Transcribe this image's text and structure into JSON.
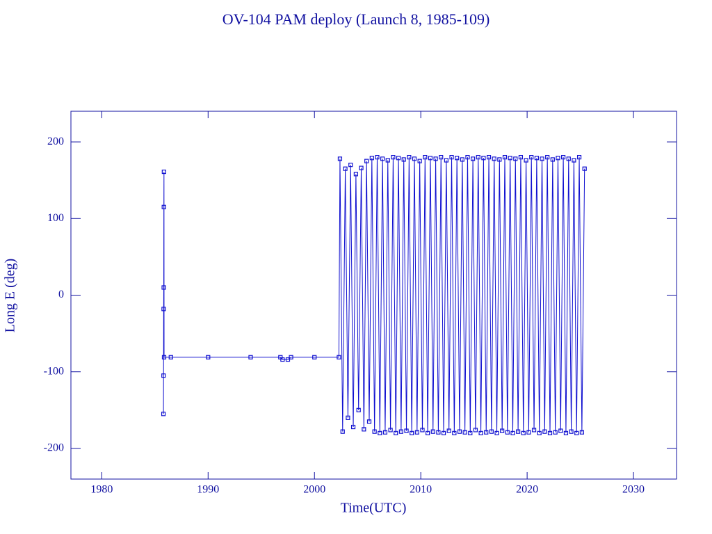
{
  "chart_data": {
    "type": "line",
    "title": "OV-104 PAM deploy (Launch 8, 1985-109)",
    "x_label": "Time(UTC)",
    "y_label": "Long E (deg)",
    "xlim": [
      1977.1,
      2034.05
    ],
    "ylim": [
      -240,
      240
    ],
    "xticks": [
      1980,
      1990,
      2000,
      2010,
      2020,
      2030
    ],
    "yticks": [
      -200,
      -100,
      0,
      100,
      200
    ],
    "series": [
      {
        "color": "#1010d0",
        "x": [
          1985.8,
          1985.81,
          1985.82,
          1985.83,
          1985.84,
          1985.85,
          1985.86,
          1986.5,
          1990,
          1994,
          1996.8,
          1997.0,
          1997.5,
          1997.8,
          2000,
          2002.3,
          2002.4,
          2002.65,
          2002.9,
          2003.15,
          2003.4,
          2003.65,
          2003.9,
          2004.15,
          2004.4,
          2004.65,
          2004.9,
          2005.15,
          2005.4,
          2005.65,
          2005.9,
          2006.15,
          2006.4,
          2006.65,
          2006.9,
          2007.15,
          2007.4,
          2007.65,
          2007.9,
          2008.15,
          2008.4,
          2008.65,
          2008.9,
          2009.15,
          2009.4,
          2009.65,
          2009.9,
          2010.15,
          2010.4,
          2010.65,
          2010.9,
          2011.15,
          2011.4,
          2011.65,
          2011.9,
          2012.15,
          2012.4,
          2012.65,
          2012.9,
          2013.15,
          2013.4,
          2013.65,
          2013.9,
          2014.15,
          2014.4,
          2014.65,
          2014.9,
          2015.15,
          2015.4,
          2015.65,
          2015.9,
          2016.15,
          2016.4,
          2016.65,
          2016.9,
          2017.15,
          2017.4,
          2017.65,
          2017.9,
          2018.15,
          2018.4,
          2018.65,
          2018.9,
          2019.15,
          2019.4,
          2019.65,
          2019.9,
          2020.15,
          2020.4,
          2020.65,
          2020.9,
          2021.15,
          2021.4,
          2021.65,
          2021.9,
          2022.15,
          2022.4,
          2022.65,
          2022.9,
          2023.15,
          2023.4,
          2023.65,
          2023.9,
          2024.15,
          2024.4,
          2024.65,
          2024.9,
          2025.15,
          2025.4
        ],
        "values": [
          -155,
          -105,
          -18,
          10,
          115,
          161,
          -81,
          -81,
          -81,
          -81,
          -81,
          -84,
          -84,
          -81,
          -81,
          -81,
          178,
          -178,
          165,
          -160,
          170,
          -172,
          158,
          -150,
          166,
          -175,
          175,
          -165,
          179,
          -178,
          180,
          -180,
          178,
          -179,
          176,
          -176,
          180,
          -180,
          179,
          -178,
          177,
          -177,
          180,
          -180,
          178,
          -179,
          175,
          -176,
          180,
          -180,
          179,
          -178,
          178,
          -179,
          180,
          -180,
          176,
          -177,
          180,
          -180,
          179,
          -178,
          177,
          -179,
          180,
          -180,
          178,
          -176,
          180,
          -180,
          179,
          -179,
          180,
          -178,
          178,
          -180,
          177,
          -177,
          180,
          -179,
          179,
          -180,
          178,
          -178,
          180,
          -180,
          176,
          -179,
          180,
          -176,
          179,
          -180,
          178,
          -178,
          180,
          -180,
          177,
          -179,
          179,
          -177,
          180,
          -180,
          178,
          -178,
          176,
          -180,
          180,
          -179,
          165
        ]
      }
    ]
  }
}
